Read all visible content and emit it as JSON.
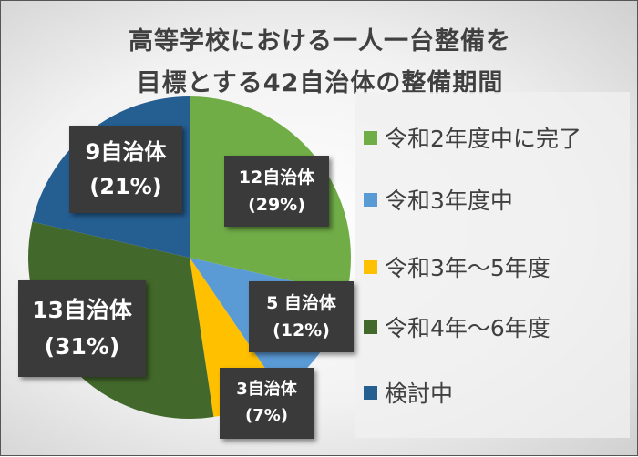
{
  "chart_data": {
    "type": "pie",
    "title_lines": [
      "高等学校における一人一台整備を",
      "目標とする42自治体の整備期間"
    ],
    "categories": [
      "令和2年度中に完了",
      "令和3年度中",
      "令和3年〜5年度",
      "令和4年〜6年度",
      "検討中"
    ],
    "values": [
      12,
      5,
      3,
      13,
      9
    ],
    "colors": [
      "#70ad47",
      "#5b9bd5",
      "#ffc000",
      "#43682b",
      "#255e91"
    ],
    "data_labels": [
      {
        "count": "12自治体",
        "percent": "(29%)"
      },
      {
        "count": "5 自治体",
        "percent": "(12%)"
      },
      {
        "count": "3自治体",
        "percent": "(7%)"
      },
      {
        "count": "13自治体",
        "percent": "(31%)"
      },
      {
        "count": "9自治体",
        "percent": "(21%)"
      }
    ],
    "legend_position": "right",
    "start_angle": "top, clockwise"
  }
}
